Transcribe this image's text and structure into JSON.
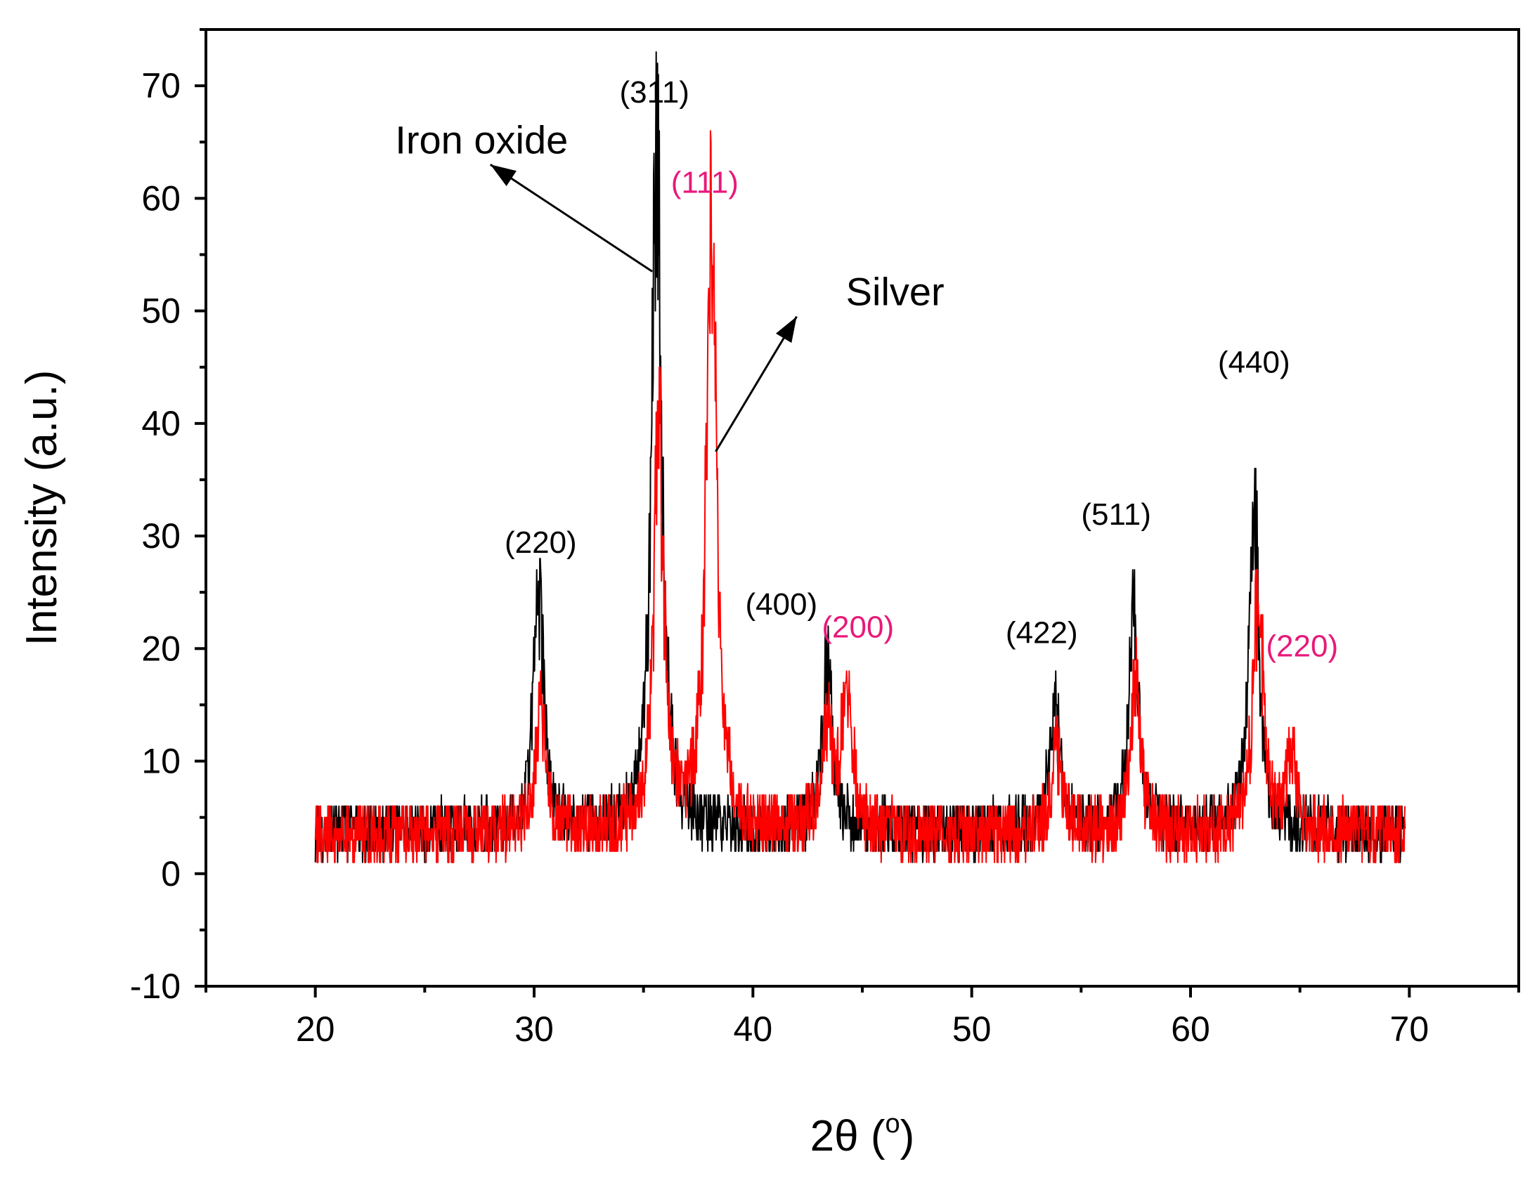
{
  "chart_data": {
    "type": "line",
    "xlabel": "2θ (°)",
    "xlabel_main": "2θ (",
    "xlabel_unit": "o",
    "xlabel_close": ")",
    "ylabel": "Intensity (a.u.)",
    "xlim": [
      15,
      75
    ],
    "ylim": [
      -10,
      75
    ],
    "x_ticks": [
      20,
      30,
      40,
      50,
      60,
      70
    ],
    "y_ticks": [
      -10,
      0,
      10,
      20,
      30,
      40,
      50,
      60,
      70
    ],
    "grid": false,
    "colors": {
      "iron_oxide": "#000000",
      "silver": "#ff0000",
      "silver_label": "#e8197a"
    },
    "series": [
      {
        "key": "iron_oxide",
        "color": "#000000",
        "peaks": [
          [
            30.2,
            21
          ],
          [
            35.6,
            60
          ],
          [
            43.4,
            15
          ],
          [
            53.8,
            11
          ],
          [
            57.4,
            19
          ],
          [
            62.9,
            28
          ]
        ],
        "peak_width": 0.28,
        "baseline": 3.8,
        "noise": 2.6,
        "x_range": [
          20,
          69.8
        ],
        "step": 0.02
      },
      {
        "key": "silver",
        "color": "#ff0000",
        "peaks": [
          [
            30.3,
            11
          ],
          [
            35.7,
            34
          ],
          [
            38.1,
            52
          ],
          [
            43.4,
            9
          ],
          [
            44.3,
            12
          ],
          [
            53.9,
            7
          ],
          [
            57.5,
            13
          ],
          [
            63.1,
            21
          ],
          [
            64.6,
            6
          ]
        ],
        "peak_width": 0.28,
        "baseline": 3.5,
        "noise": 2.8,
        "x_range": [
          20,
          69.8
        ],
        "step": 0.02
      }
    ],
    "peak_labels": [
      {
        "text": "(220)",
        "x": 30.3,
        "y": 28.5,
        "color": "#000000"
      },
      {
        "text": "(311)",
        "x": 35.5,
        "y": 68.5,
        "color": "#000000"
      },
      {
        "text": "(400)",
        "x": 41.3,
        "y": 23.0,
        "color": "#000000"
      },
      {
        "text": "(422)",
        "x": 53.2,
        "y": 20.5,
        "color": "#000000"
      },
      {
        "text": "(511)",
        "x": 56.6,
        "y": 31.0,
        "color": "#000000"
      },
      {
        "text": "(440)",
        "x": 62.9,
        "y": 44.5,
        "color": "#000000"
      },
      {
        "text": "(111)",
        "x": 37.8,
        "y": 60.5,
        "color": "#e8197a"
      },
      {
        "text": "(200)",
        "x": 44.8,
        "y": 21.0,
        "color": "#e8197a"
      },
      {
        "text": "(220)",
        "x": 65.1,
        "y": 19.3,
        "color": "#e8197a"
      }
    ],
    "annotations": [
      {
        "text": "Iron oxide",
        "x": 27.6,
        "y": 64.0,
        "arrow_from": [
          35.4,
          53.5
        ],
        "arrow_to": [
          28.0,
          63.0
        ]
      },
      {
        "text": "Silver",
        "x": 46.5,
        "y": 50.5,
        "arrow_from": [
          38.3,
          37.5
        ],
        "arrow_to": [
          42.0,
          49.5
        ]
      }
    ]
  }
}
